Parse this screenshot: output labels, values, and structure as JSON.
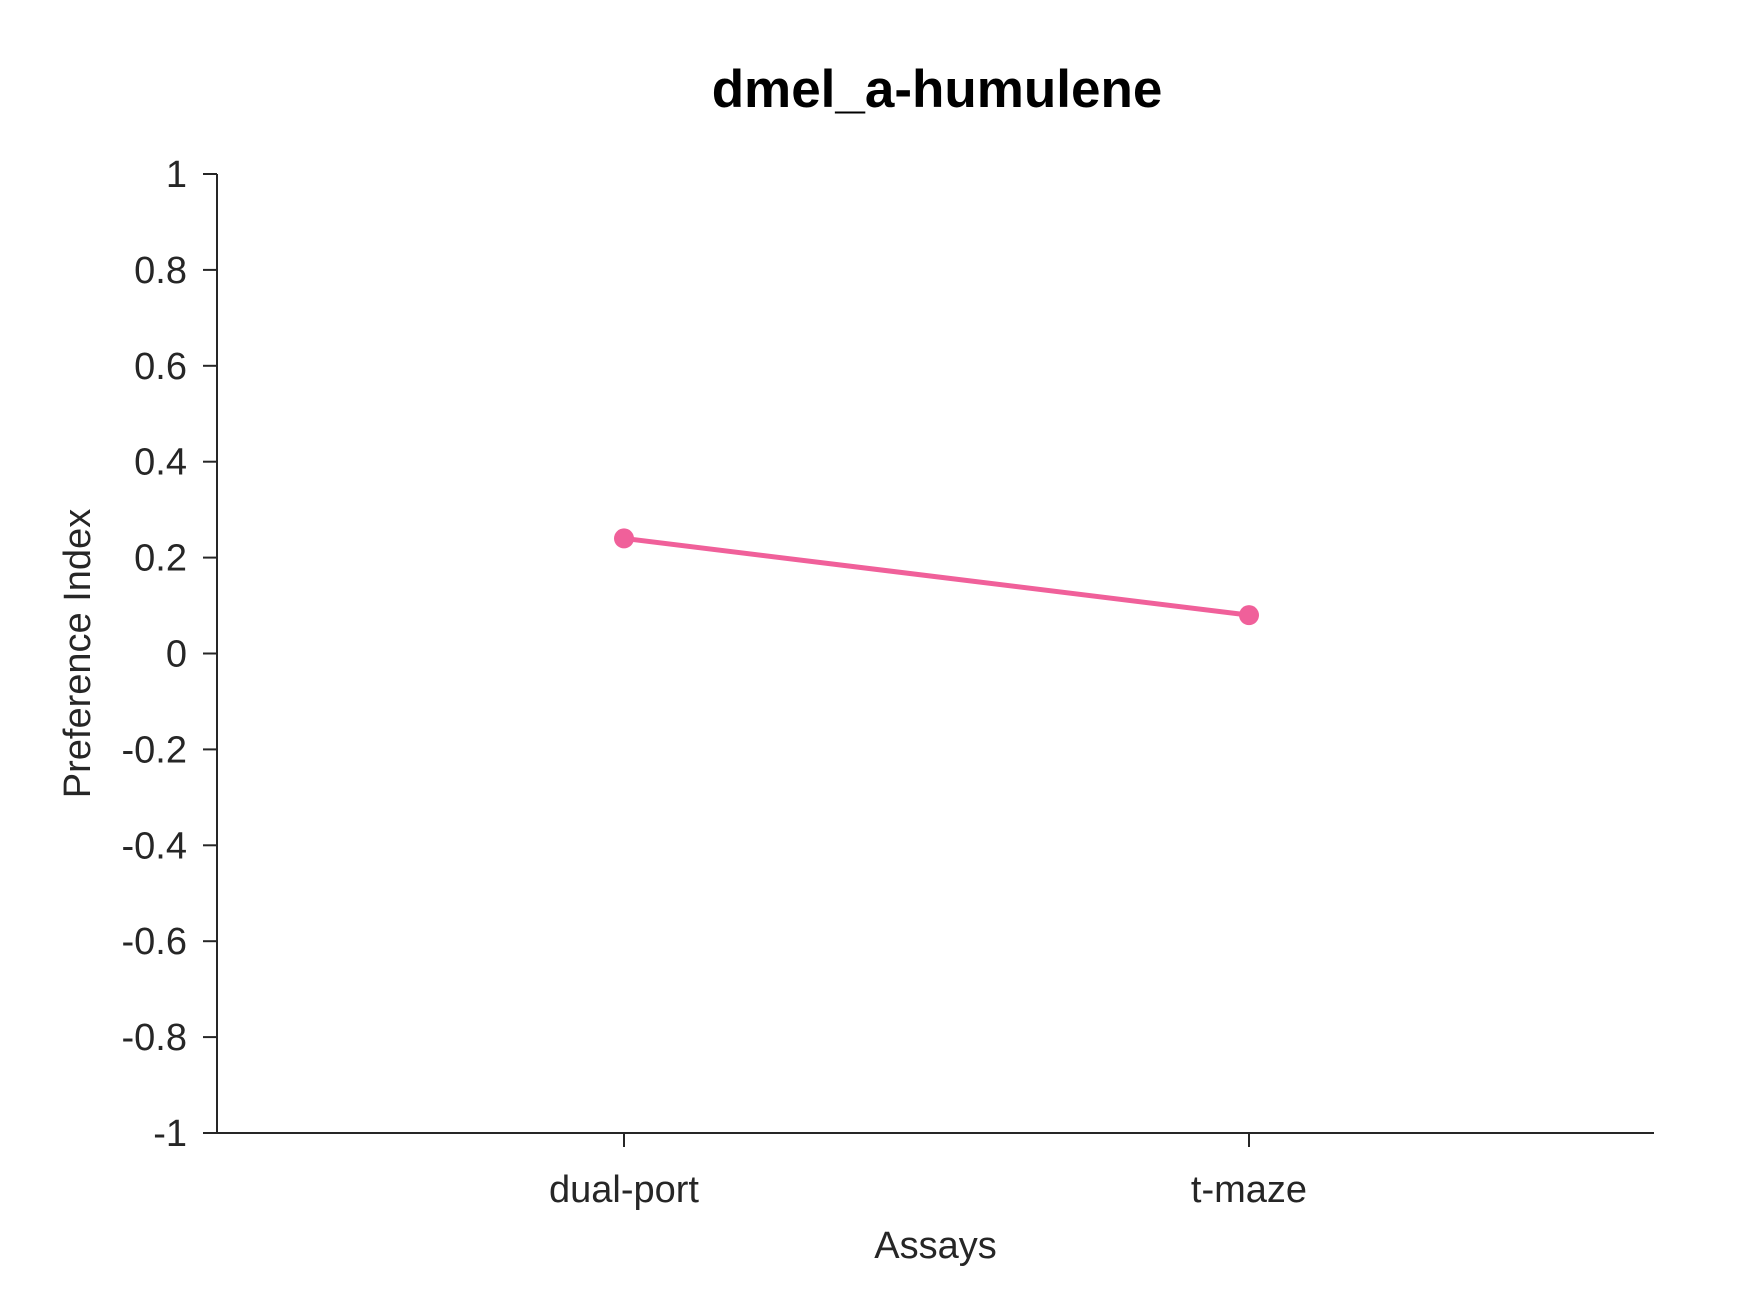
{
  "chart_data": {
    "type": "line",
    "title": "dmel_a-humulene",
    "xlabel": "Assays",
    "ylabel": "Preference Index",
    "categories": [
      "dual-port",
      "t-maze"
    ],
    "series": [
      {
        "values": [
          0.24,
          0.08
        ],
        "color": "#f0609a"
      }
    ],
    "ylim": [
      -1,
      1
    ],
    "yticks": [
      1,
      0.8,
      0.6,
      0.4,
      0.2,
      0,
      -0.2,
      -0.4,
      -0.6,
      -0.8,
      -1
    ],
    "ytick_labels": [
      "1",
      "0.8",
      "0.6",
      "0.4",
      "0.2",
      "0",
      "-0.2",
      "-0.4",
      "-0.6",
      "-0.8",
      "-1"
    ],
    "grid": false,
    "legend": "none"
  }
}
